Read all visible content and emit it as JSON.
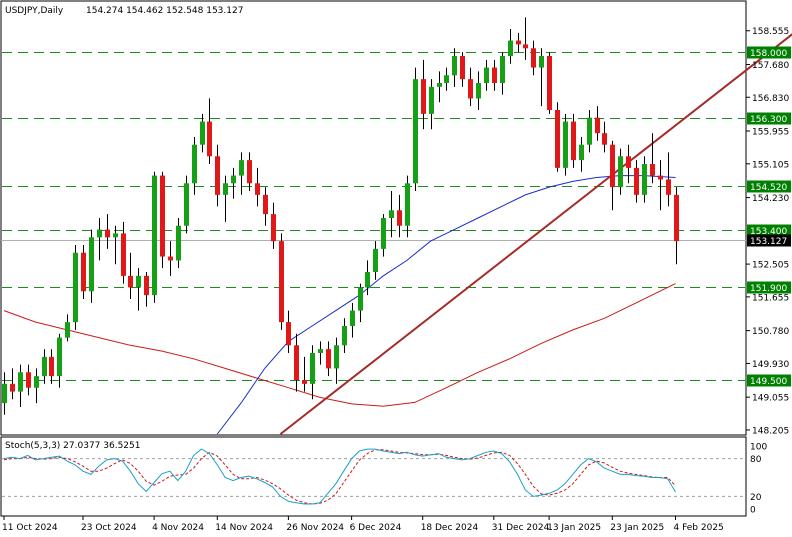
{
  "chart_data": {
    "type": "candlestick",
    "title": "USDJPY,Daily",
    "ohlc_header": "154.274 154.462 152.548 153.127",
    "colors": {
      "bull": "#16a016",
      "bear": "#e01818",
      "wick": "#000000",
      "ma_fast": "#1a2dcc",
      "ma_slow": "#cc1a1a",
      "trendline": "#a52a2a",
      "hlines": "#1e8c1e",
      "stoch_main": "#1aa0c8",
      "stoch_signal": "#cc1a1a",
      "price_marker_bg": "#000000",
      "level_label_bg": "#008000"
    },
    "price_axis": {
      "ticks": [
        "158.555",
        "157.680",
        "156.830",
        "155.955",
        "155.105",
        "154.230",
        "152.505",
        "151.655",
        "150.780",
        "149.930",
        "149.055",
        "148.205"
      ],
      "tick_values": [
        158.555,
        157.68,
        156.83,
        155.955,
        155.105,
        154.23,
        152.505,
        151.655,
        150.78,
        149.93,
        149.055,
        148.205
      ],
      "range": [
        148.1,
        159.3
      ]
    },
    "x_axis": {
      "labels": [
        "11 Oct 2024",
        "23 Oct 2024",
        "4 Nov 2024",
        "14 Nov 2024",
        "26 Nov 2024",
        "6 Dec 2024",
        "18 Dec 2024",
        "31 Dec 2024",
        "13 Jan 2025",
        "23 Jan 2025",
        "4 Feb 2025"
      ],
      "label_bars": [
        0,
        10,
        19,
        27,
        36,
        44,
        53,
        62,
        69,
        77,
        85
      ]
    },
    "levels": [
      {
        "label": "158.000",
        "value": 158.0
      },
      {
        "label": "156.300",
        "value": 156.3
      },
      {
        "label": "154.520",
        "value": 154.52
      },
      {
        "label": "153.400",
        "value": 153.4
      },
      {
        "label": "151.900",
        "value": 151.9
      },
      {
        "label": "149.500",
        "value": 149.5
      }
    ],
    "current_price": {
      "label": "153.127",
      "value": 153.127
    },
    "candles": [
      {
        "o": 148.9,
        "h": 149.7,
        "l": 148.6,
        "c": 149.4
      },
      {
        "o": 149.4,
        "h": 149.8,
        "l": 149.0,
        "c": 149.2
      },
      {
        "o": 149.2,
        "h": 149.9,
        "l": 148.8,
        "c": 149.7
      },
      {
        "o": 149.7,
        "h": 149.9,
        "l": 149.1,
        "c": 149.3
      },
      {
        "o": 149.3,
        "h": 149.8,
        "l": 148.9,
        "c": 149.6
      },
      {
        "o": 149.6,
        "h": 150.3,
        "l": 149.4,
        "c": 150.1
      },
      {
        "o": 150.1,
        "h": 150.3,
        "l": 149.4,
        "c": 149.6
      },
      {
        "o": 149.6,
        "h": 150.7,
        "l": 149.3,
        "c": 150.6
      },
      {
        "o": 150.6,
        "h": 151.2,
        "l": 150.5,
        "c": 151.0
      },
      {
        "o": 151.0,
        "h": 153.0,
        "l": 150.8,
        "c": 152.8
      },
      {
        "o": 152.8,
        "h": 153.0,
        "l": 151.6,
        "c": 151.8
      },
      {
        "o": 151.8,
        "h": 153.4,
        "l": 151.5,
        "c": 153.2
      },
      {
        "o": 153.2,
        "h": 153.7,
        "l": 152.6,
        "c": 153.4
      },
      {
        "o": 153.4,
        "h": 153.8,
        "l": 152.9,
        "c": 153.2
      },
      {
        "o": 153.2,
        "h": 153.5,
        "l": 152.5,
        "c": 153.3
      },
      {
        "o": 153.3,
        "h": 153.6,
        "l": 152.0,
        "c": 152.2
      },
      {
        "o": 152.2,
        "h": 152.8,
        "l": 151.6,
        "c": 151.9
      },
      {
        "o": 151.9,
        "h": 152.4,
        "l": 151.3,
        "c": 152.2
      },
      {
        "o": 152.2,
        "h": 152.3,
        "l": 151.4,
        "c": 151.7
      },
      {
        "o": 151.7,
        "h": 154.9,
        "l": 151.5,
        "c": 154.8
      },
      {
        "o": 154.8,
        "h": 154.9,
        "l": 152.4,
        "c": 152.7
      },
      {
        "o": 152.7,
        "h": 153.1,
        "l": 152.2,
        "c": 152.6
      },
      {
        "o": 152.6,
        "h": 153.7,
        "l": 152.4,
        "c": 153.5
      },
      {
        "o": 153.5,
        "h": 154.8,
        "l": 153.3,
        "c": 154.6
      },
      {
        "o": 154.6,
        "h": 155.8,
        "l": 154.3,
        "c": 155.6
      },
      {
        "o": 155.6,
        "h": 156.4,
        "l": 155.4,
        "c": 156.2
      },
      {
        "o": 156.2,
        "h": 156.8,
        "l": 155.1,
        "c": 155.3
      },
      {
        "o": 155.3,
        "h": 155.6,
        "l": 154.0,
        "c": 154.3
      },
      {
        "o": 154.3,
        "h": 154.8,
        "l": 153.6,
        "c": 154.6
      },
      {
        "o": 154.6,
        "h": 155.0,
        "l": 154.2,
        "c": 154.8
      },
      {
        "o": 154.8,
        "h": 155.4,
        "l": 154.3,
        "c": 155.2
      },
      {
        "o": 155.2,
        "h": 155.4,
        "l": 154.4,
        "c": 154.6
      },
      {
        "o": 154.6,
        "h": 155.0,
        "l": 154.0,
        "c": 154.3
      },
      {
        "o": 154.3,
        "h": 154.5,
        "l": 153.5,
        "c": 153.8
      },
      {
        "o": 153.8,
        "h": 154.1,
        "l": 152.9,
        "c": 153.1
      },
      {
        "o": 153.1,
        "h": 153.3,
        "l": 150.8,
        "c": 151.0
      },
      {
        "o": 151.0,
        "h": 151.3,
        "l": 150.2,
        "c": 150.4
      },
      {
        "o": 150.4,
        "h": 150.7,
        "l": 149.2,
        "c": 149.5
      },
      {
        "o": 149.5,
        "h": 150.1,
        "l": 149.2,
        "c": 149.4
      },
      {
        "o": 149.4,
        "h": 150.4,
        "l": 149.0,
        "c": 150.2
      },
      {
        "o": 150.2,
        "h": 150.5,
        "l": 149.9,
        "c": 150.3
      },
      {
        "o": 150.3,
        "h": 150.5,
        "l": 149.6,
        "c": 149.8
      },
      {
        "o": 149.8,
        "h": 150.6,
        "l": 149.4,
        "c": 150.4
      },
      {
        "o": 150.4,
        "h": 151.1,
        "l": 150.2,
        "c": 150.9
      },
      {
        "o": 150.9,
        "h": 151.5,
        "l": 150.6,
        "c": 151.3
      },
      {
        "o": 151.3,
        "h": 152.0,
        "l": 151.0,
        "c": 151.9
      },
      {
        "o": 151.9,
        "h": 152.6,
        "l": 151.7,
        "c": 152.3
      },
      {
        "o": 152.3,
        "h": 153.1,
        "l": 152.1,
        "c": 152.9
      },
      {
        "o": 152.9,
        "h": 153.8,
        "l": 152.7,
        "c": 153.7
      },
      {
        "o": 153.7,
        "h": 154.4,
        "l": 153.2,
        "c": 153.9
      },
      {
        "o": 153.9,
        "h": 154.3,
        "l": 153.2,
        "c": 153.5
      },
      {
        "o": 153.5,
        "h": 154.8,
        "l": 153.2,
        "c": 154.6
      },
      {
        "o": 154.6,
        "h": 157.6,
        "l": 154.4,
        "c": 157.3
      },
      {
        "o": 157.3,
        "h": 157.8,
        "l": 156.0,
        "c": 156.4
      },
      {
        "o": 156.4,
        "h": 157.3,
        "l": 156.0,
        "c": 157.1
      },
      {
        "o": 157.1,
        "h": 157.5,
        "l": 156.7,
        "c": 157.2
      },
      {
        "o": 157.2,
        "h": 157.6,
        "l": 157.0,
        "c": 157.4
      },
      {
        "o": 157.4,
        "h": 158.1,
        "l": 157.1,
        "c": 157.9
      },
      {
        "o": 157.9,
        "h": 158.0,
        "l": 157.1,
        "c": 157.3
      },
      {
        "o": 157.3,
        "h": 157.6,
        "l": 156.6,
        "c": 156.8
      },
      {
        "o": 156.8,
        "h": 157.5,
        "l": 156.5,
        "c": 157.2
      },
      {
        "o": 157.2,
        "h": 157.8,
        "l": 157.0,
        "c": 157.6
      },
      {
        "o": 157.6,
        "h": 157.8,
        "l": 157.0,
        "c": 157.2
      },
      {
        "o": 157.2,
        "h": 158.0,
        "l": 156.9,
        "c": 157.9
      },
      {
        "o": 157.9,
        "h": 158.6,
        "l": 157.7,
        "c": 158.3
      },
      {
        "o": 158.3,
        "h": 158.5,
        "l": 158.0,
        "c": 158.2
      },
      {
        "o": 158.2,
        "h": 158.9,
        "l": 157.8,
        "c": 158.1
      },
      {
        "o": 158.1,
        "h": 158.3,
        "l": 157.4,
        "c": 157.6
      },
      {
        "o": 157.6,
        "h": 158.1,
        "l": 156.6,
        "c": 157.9
      },
      {
        "o": 157.9,
        "h": 158.0,
        "l": 156.4,
        "c": 156.5
      },
      {
        "o": 156.5,
        "h": 156.7,
        "l": 154.9,
        "c": 155.0
      },
      {
        "o": 155.0,
        "h": 156.4,
        "l": 154.8,
        "c": 156.2
      },
      {
        "o": 156.2,
        "h": 156.4,
        "l": 155.0,
        "c": 155.2
      },
      {
        "o": 155.2,
        "h": 155.8,
        "l": 154.9,
        "c": 155.6
      },
      {
        "o": 155.6,
        "h": 156.5,
        "l": 155.4,
        "c": 156.3
      },
      {
        "o": 156.3,
        "h": 156.6,
        "l": 155.7,
        "c": 155.9
      },
      {
        "o": 155.9,
        "h": 156.2,
        "l": 155.4,
        "c": 155.6
      },
      {
        "o": 155.6,
        "h": 155.7,
        "l": 153.9,
        "c": 154.5
      },
      {
        "o": 154.5,
        "h": 155.5,
        "l": 154.3,
        "c": 155.3
      },
      {
        "o": 155.3,
        "h": 155.6,
        "l": 154.6,
        "c": 155.0
      },
      {
        "o": 155.0,
        "h": 155.2,
        "l": 154.1,
        "c": 154.3
      },
      {
        "o": 154.3,
        "h": 155.3,
        "l": 154.1,
        "c": 155.1
      },
      {
        "o": 155.1,
        "h": 155.9,
        "l": 154.6,
        "c": 154.8
      },
      {
        "o": 154.8,
        "h": 155.2,
        "l": 153.9,
        "c": 154.7
      },
      {
        "o": 154.7,
        "h": 155.4,
        "l": 154.0,
        "c": 154.3
      },
      {
        "o": 154.3,
        "h": 154.5,
        "l": 152.5,
        "c": 153.1
      }
    ],
    "ma_fast": [
      [
        27,
        148.1
      ],
      [
        30,
        148.9
      ],
      [
        33,
        149.8
      ],
      [
        36,
        150.5
      ],
      [
        39,
        150.9
      ],
      [
        42,
        151.3
      ],
      [
        45,
        151.7
      ],
      [
        48,
        152.2
      ],
      [
        51,
        152.6
      ],
      [
        54,
        153.1
      ],
      [
        57,
        153.4
      ],
      [
        60,
        153.7
      ],
      [
        63,
        154.0
      ],
      [
        66,
        154.3
      ],
      [
        69,
        154.5
      ],
      [
        72,
        154.65
      ],
      [
        75,
        154.75
      ],
      [
        78,
        154.8
      ],
      [
        81,
        154.8
      ],
      [
        85,
        154.75
      ]
    ],
    "ma_slow": [
      [
        0,
        151.3
      ],
      [
        4,
        151.0
      ],
      [
        8,
        150.8
      ],
      [
        12,
        150.6
      ],
      [
        16,
        150.4
      ],
      [
        20,
        150.25
      ],
      [
        24,
        150.05
      ],
      [
        28,
        149.8
      ],
      [
        32,
        149.55
      ],
      [
        36,
        149.3
      ],
      [
        40,
        149.05
      ],
      [
        44,
        148.88
      ],
      [
        48,
        148.82
      ],
      [
        52,
        148.92
      ],
      [
        56,
        149.3
      ],
      [
        60,
        149.7
      ],
      [
        64,
        150.05
      ],
      [
        68,
        150.45
      ],
      [
        72,
        150.8
      ],
      [
        76,
        151.1
      ],
      [
        80,
        151.5
      ],
      [
        85,
        152.0
      ]
    ],
    "trendline": [
      [
        35,
        148.1
      ],
      [
        100,
        158.5
      ]
    ],
    "stoch": {
      "label": "Stoch(5,3,3) 27.0377 36.5251",
      "ticks": [
        {
          "label": "100",
          "value": 100
        },
        {
          "label": "80",
          "value": 80
        },
        {
          "label": "20",
          "value": 20
        },
        {
          "label": "0",
          "value": 0
        }
      ],
      "main": [
        80,
        82,
        80,
        85,
        78,
        80,
        82,
        84,
        76,
        70,
        60,
        55,
        68,
        78,
        80,
        76,
        60,
        40,
        28,
        42,
        56,
        60,
        45,
        60,
        85,
        95,
        88,
        70,
        50,
        45,
        50,
        52,
        48,
        42,
        35,
        20,
        12,
        10,
        8,
        8,
        10,
        25,
        40,
        60,
        80,
        92,
        95,
        95,
        92,
        90,
        88,
        90,
        86,
        84,
        86,
        88,
        82,
        80,
        78,
        80,
        85,
        90,
        92,
        88,
        75,
        55,
        30,
        20,
        22,
        25,
        30,
        40,
        55,
        70,
        80,
        75,
        65,
        60,
        55,
        55,
        53,
        52,
        50,
        50,
        48,
        27
      ],
      "signal": [
        78,
        80,
        80,
        82,
        80,
        79,
        80,
        82,
        80,
        75,
        68,
        60,
        60,
        65,
        72,
        78,
        72,
        60,
        44,
        38,
        44,
        52,
        54,
        55,
        65,
        80,
        90,
        84,
        70,
        55,
        48,
        48,
        50,
        46,
        40,
        32,
        22,
        14,
        10,
        8,
        9,
        14,
        24,
        42,
        60,
        78,
        88,
        94,
        94,
        92,
        90,
        89,
        88,
        86,
        86,
        87,
        85,
        82,
        80,
        79,
        81,
        85,
        89,
        90,
        85,
        72,
        55,
        36,
        24,
        22,
        25,
        30,
        40,
        55,
        70,
        76,
        73,
        66,
        60,
        57,
        55,
        53,
        51,
        50,
        50,
        37
      ]
    }
  }
}
